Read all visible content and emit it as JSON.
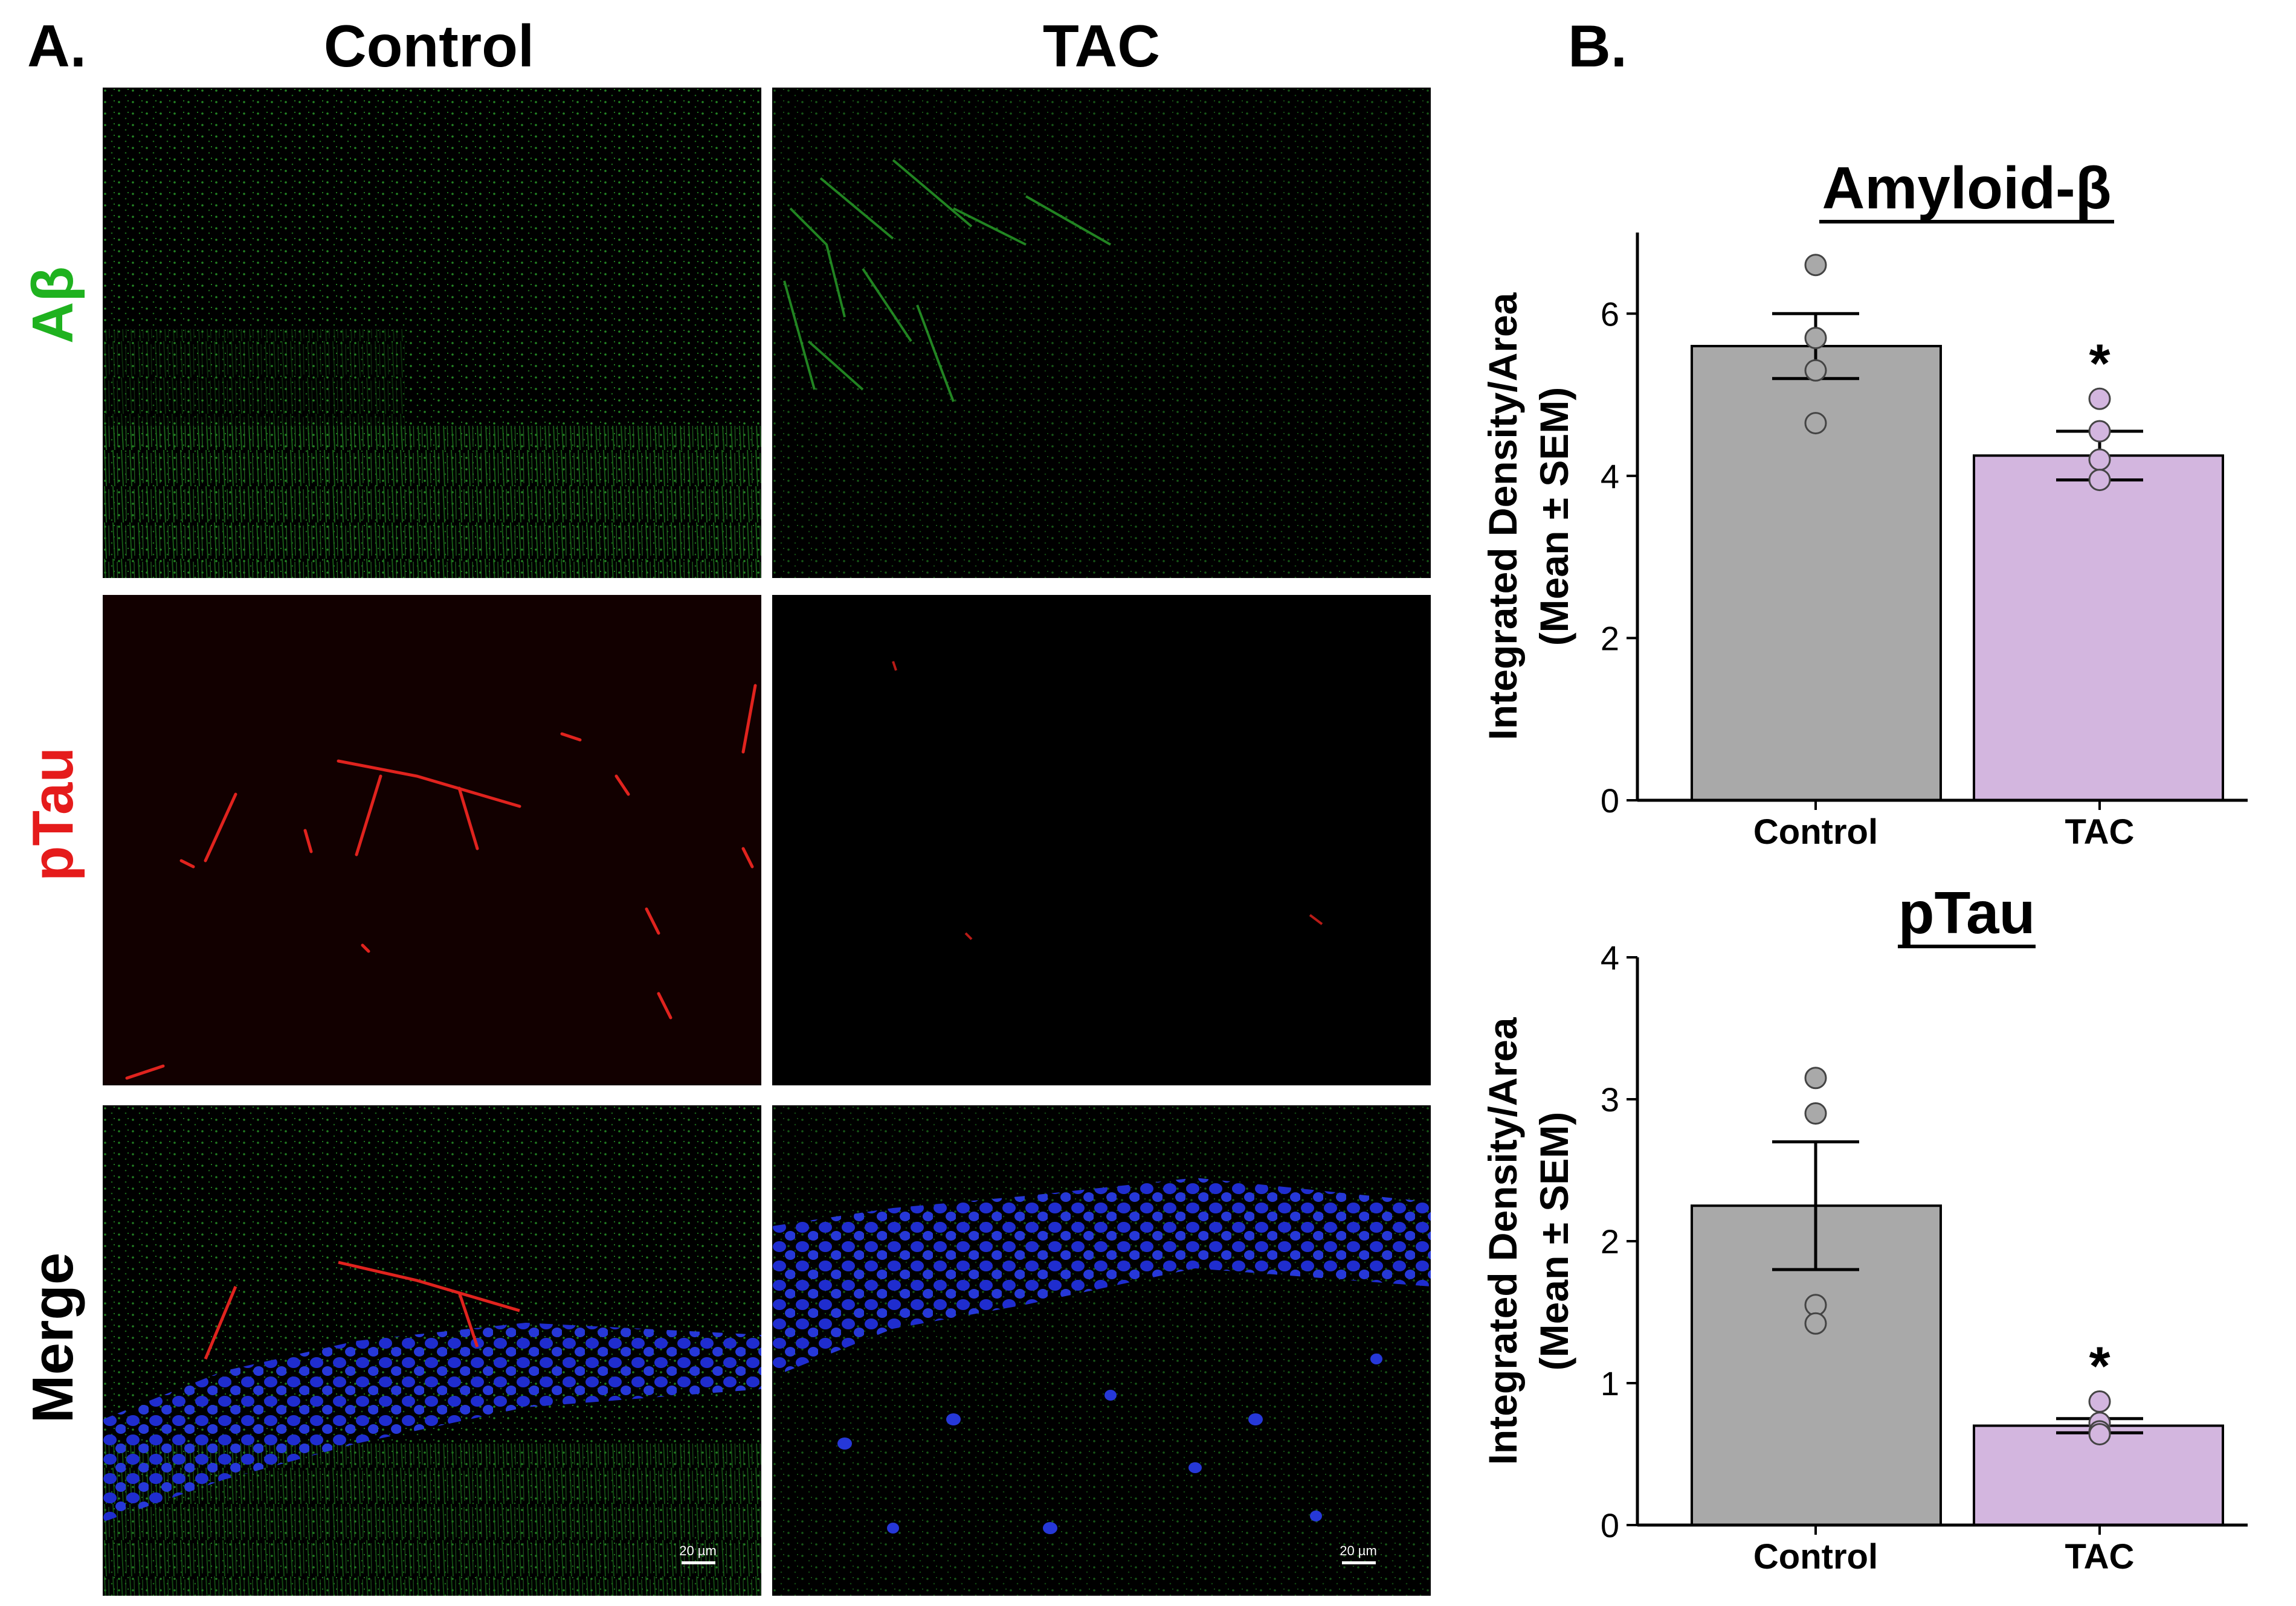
{
  "panel_a": {
    "letter": "A.",
    "columns": [
      "Control",
      "TAC"
    ],
    "rows": [
      {
        "label": "Aβ",
        "color": "#1fb21f"
      },
      {
        "label": "pTau",
        "color": "#e51b1b"
      },
      {
        "label": "Merge",
        "color": "#000000"
      }
    ],
    "scale_bar_label": "20 µm"
  },
  "panel_b": {
    "letter": "B."
  },
  "chart_data": [
    {
      "type": "bar",
      "title": "Amyloid-β",
      "ylabel_line1": "Integrated Density/Area",
      "ylabel_line2": "(Mean ± SEM)",
      "categories": [
        "Control",
        "TAC"
      ],
      "values": [
        5.6,
        4.25
      ],
      "sem": [
        0.4,
        0.3
      ],
      "points": [
        [
          6.6,
          5.7,
          5.3,
          4.65
        ],
        [
          4.95,
          4.55,
          4.2,
          3.95
        ]
      ],
      "significance": [
        "",
        "*"
      ],
      "ylim": [
        0,
        7
      ],
      "yticks": [
        0,
        2,
        4,
        6
      ],
      "bar_colors": [
        "#a9a9a9",
        "#d3b6df"
      ]
    },
    {
      "type": "bar",
      "title": "pTau",
      "ylabel_line1": "Integrated Density/Area",
      "ylabel_line2": "(Mean ± SEM)",
      "categories": [
        "Control",
        "TAC"
      ],
      "values": [
        2.25,
        0.7
      ],
      "sem": [
        0.45,
        0.05
      ],
      "points": [
        [
          3.15,
          2.9,
          1.55,
          1.42
        ],
        [
          0.87,
          0.72,
          0.66,
          0.64
        ]
      ],
      "significance": [
        "",
        "*"
      ],
      "ylim": [
        0,
        4
      ],
      "yticks": [
        0,
        1,
        2,
        3,
        4
      ],
      "bar_colors": [
        "#a9a9a9",
        "#d3b6df"
      ]
    }
  ]
}
